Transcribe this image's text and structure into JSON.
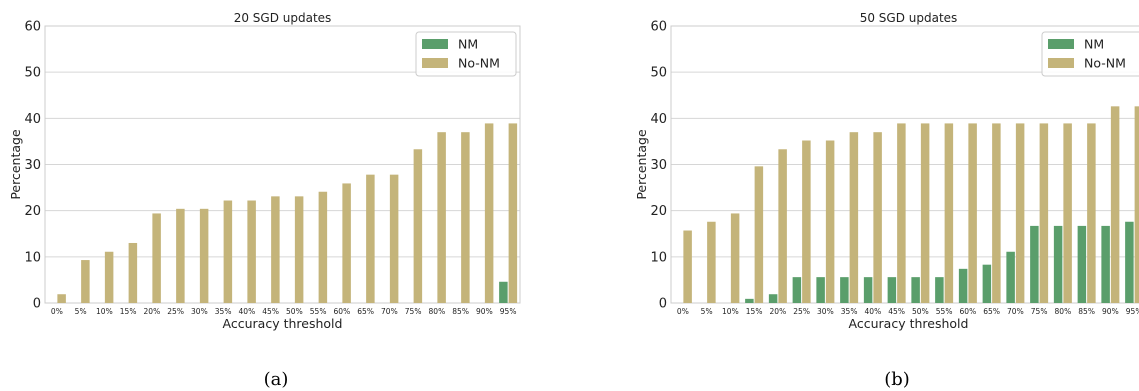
{
  "colors": {
    "NM": "#5a9e6b",
    "No-NM": "#c4b47a",
    "grid": "#d6d6d6",
    "axes_edge": "#cccccc"
  },
  "chart_data": [
    {
      "type": "bar",
      "title": "20 SGD updates",
      "xlabel": "Accuracy threshold",
      "ylabel": "Percentage",
      "caption": "(a)",
      "categories": [
        "0%",
        "5%",
        "10%",
        "15%",
        "20%",
        "25%",
        "30%",
        "35%",
        "40%",
        "45%",
        "50%",
        "55%",
        "60%",
        "65%",
        "70%",
        "75%",
        "80%",
        "85%",
        "90%",
        "95%"
      ],
      "ylim": [
        0,
        60
      ],
      "yticks": [
        "0",
        "10",
        "20",
        "30",
        "40",
        "50",
        "60"
      ],
      "grid": true,
      "legend": "top-right",
      "series": [
        {
          "name": "NM",
          "values": [
            0,
            0,
            0,
            0,
            0,
            0,
            0,
            0,
            0,
            0,
            0,
            0,
            0,
            0,
            0,
            0,
            0,
            0,
            0,
            4.6
          ]
        },
        {
          "name": "No-NM",
          "values": [
            1.9,
            9.3,
            11.1,
            13.0,
            19.4,
            20.4,
            20.4,
            22.2,
            22.2,
            23.1,
            23.1,
            24.1,
            25.9,
            27.8,
            27.8,
            33.3,
            37.0,
            37.0,
            38.9,
            38.9
          ]
        }
      ]
    },
    {
      "type": "bar",
      "title": "50 SGD updates",
      "xlabel": "Accuracy threshold",
      "ylabel": "Percentage",
      "caption": "(b)",
      "categories": [
        "0%",
        "5%",
        "10%",
        "15%",
        "20%",
        "25%",
        "30%",
        "35%",
        "40%",
        "45%",
        "50%",
        "55%",
        "60%",
        "65%",
        "70%",
        "75%",
        "80%",
        "85%",
        "90%",
        "95%"
      ],
      "ylim": [
        0,
        60
      ],
      "yticks": [
        "0",
        "10",
        "20",
        "30",
        "40",
        "50",
        "60"
      ],
      "grid": true,
      "legend": "top-right",
      "series": [
        {
          "name": "NM",
          "values": [
            0,
            0,
            0,
            0.9,
            1.9,
            5.6,
            5.6,
            5.6,
            5.6,
            5.6,
            5.6,
            5.6,
            7.4,
            8.3,
            11.1,
            16.7,
            16.7,
            16.7,
            16.7,
            17.6
          ]
        },
        {
          "name": "No-NM",
          "values": [
            15.7,
            17.6,
            19.4,
            29.6,
            33.3,
            35.2,
            35.2,
            37.0,
            37.0,
            38.9,
            38.9,
            38.9,
            38.9,
            38.9,
            38.9,
            38.9,
            38.9,
            38.9,
            42.6,
            42.6
          ]
        }
      ]
    }
  ]
}
